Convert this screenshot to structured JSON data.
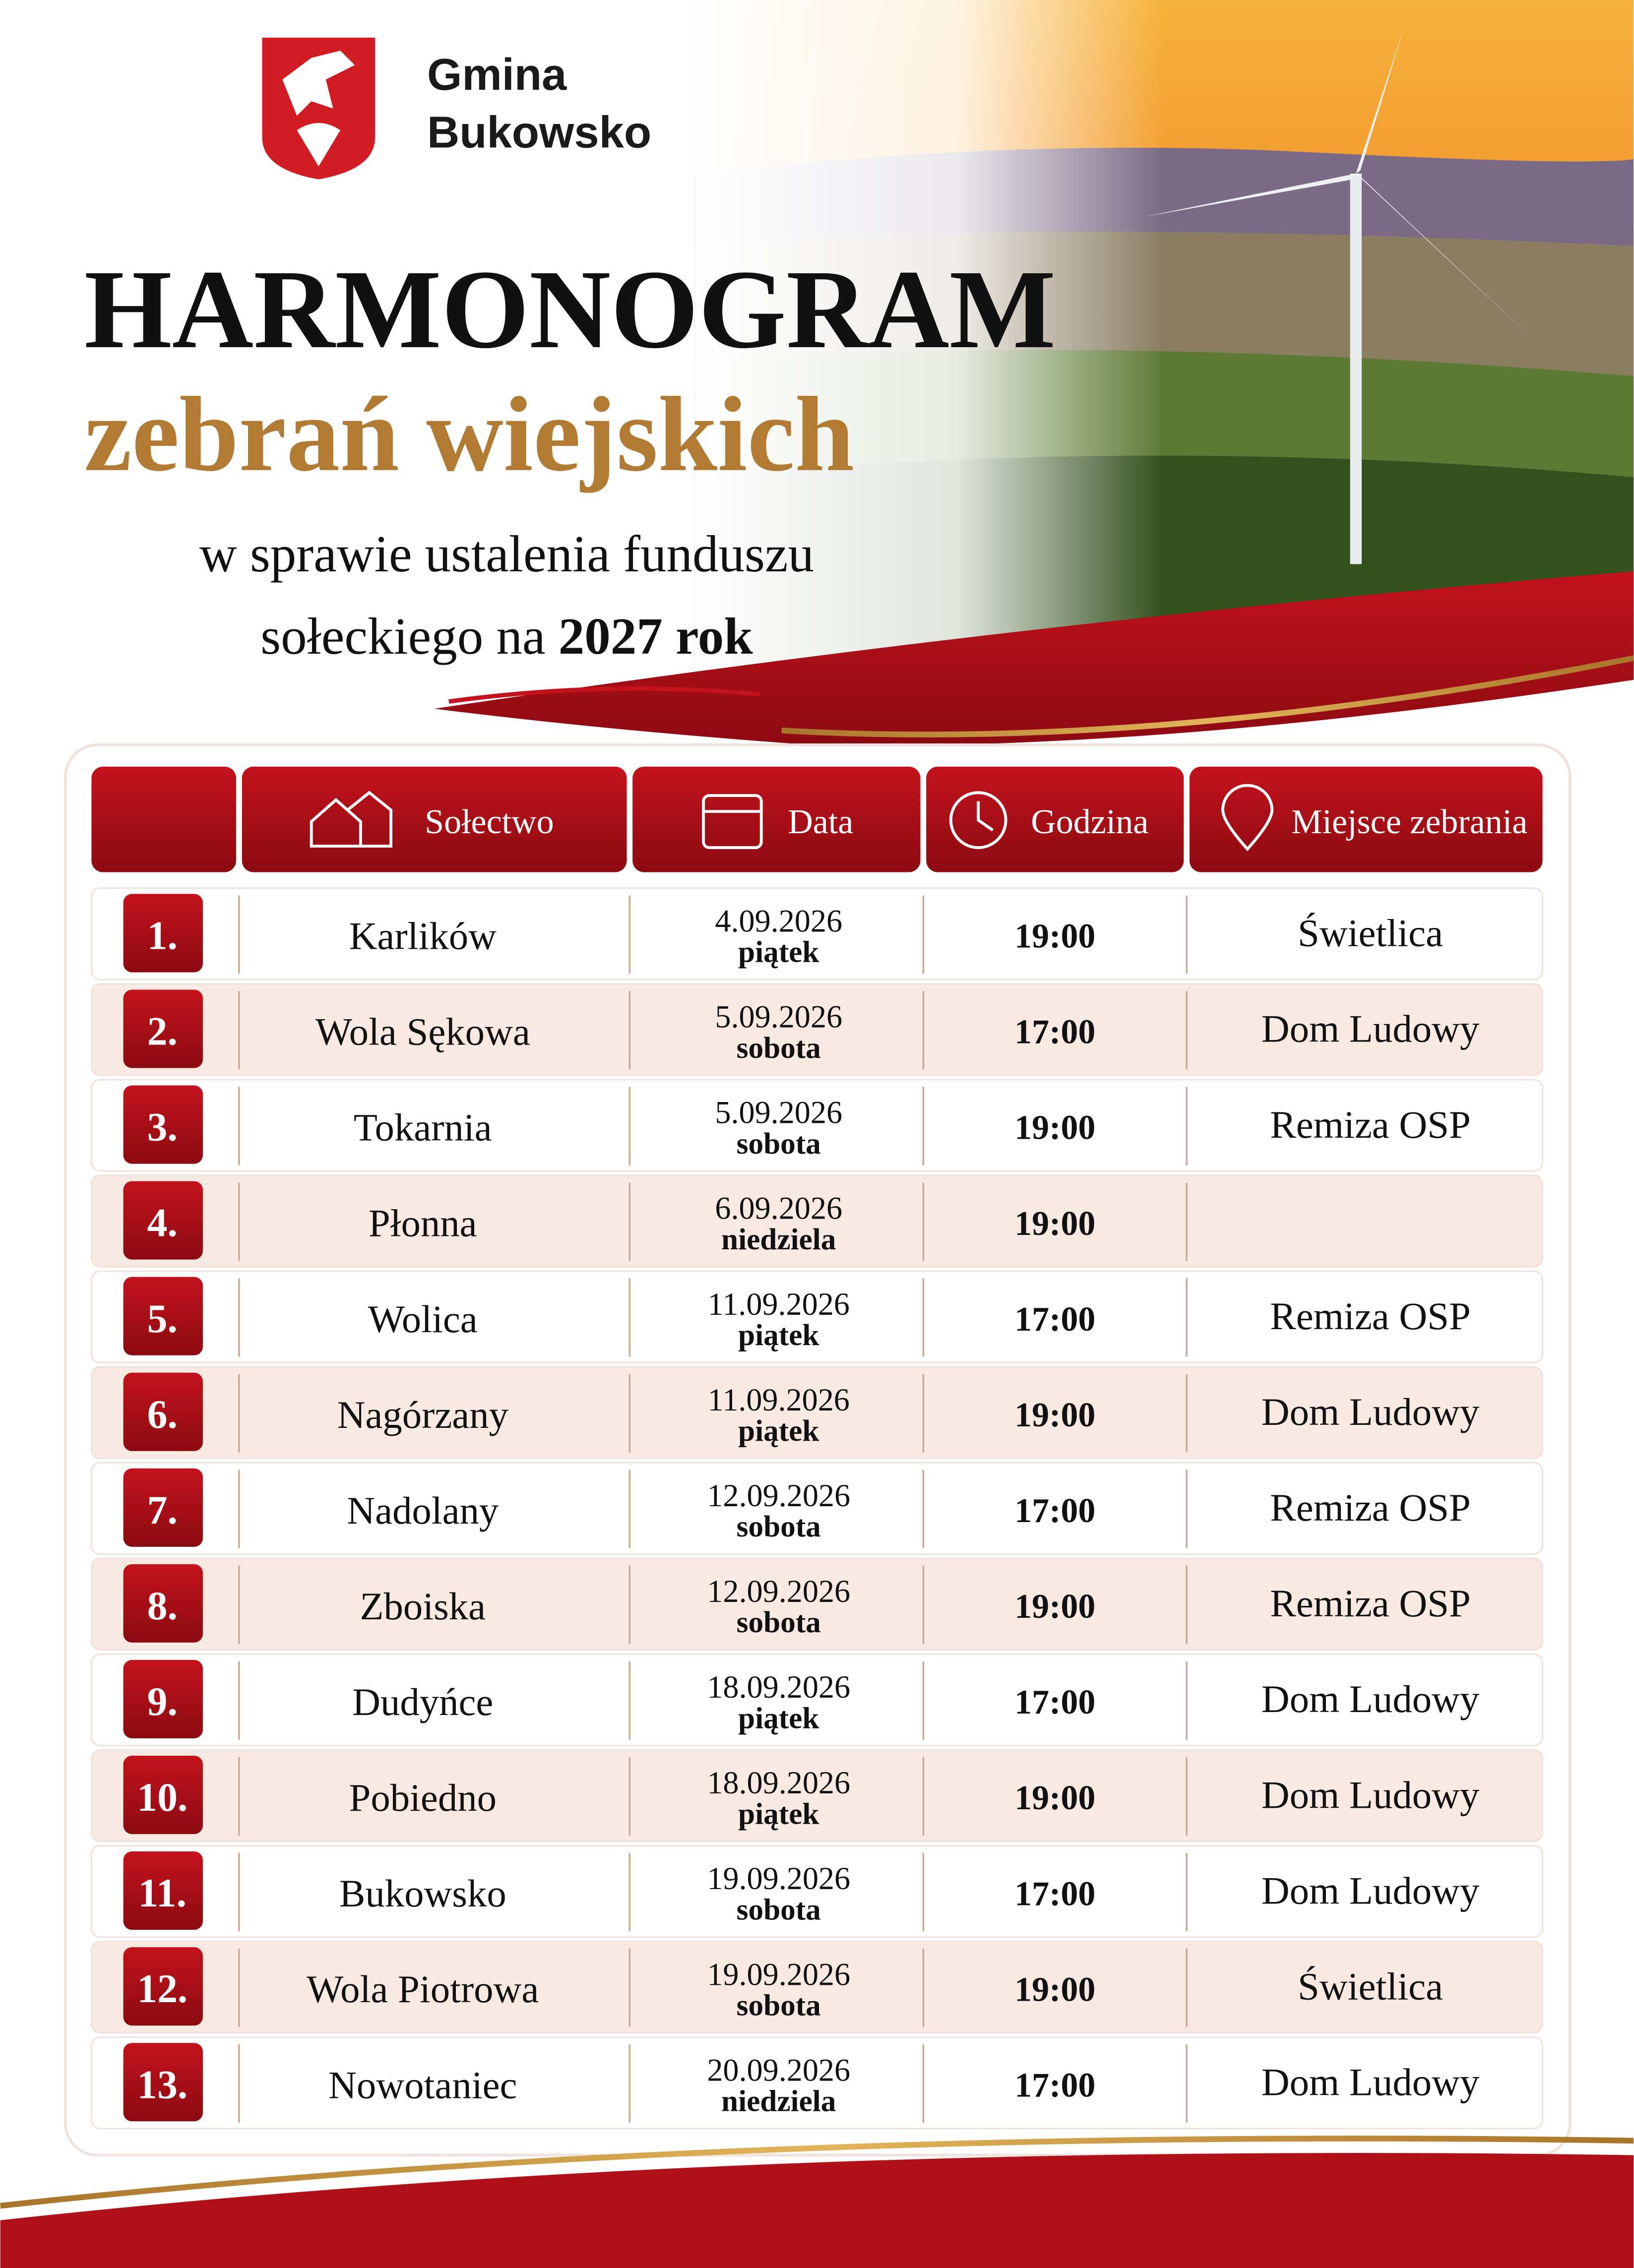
{
  "header": {
    "logo_lines": [
      "Gmina",
      "Bukowsko"
    ],
    "title": "HARMONOGRAM",
    "subtitle": "zebrań wiejskich",
    "description_line1": "w sprawie ustalenia funduszu",
    "description_line2": "sołeckiego na",
    "year": "2027",
    "year_suffix": "rok"
  },
  "table": {
    "columns": [
      "Sołectwo",
      "Data",
      "Godzina",
      "Miejsce zebrania"
    ],
    "rows": [
      {
        "no": "1.",
        "village": "Karlików",
        "date": "4.09.2026",
        "day": "piątek",
        "time": "19:00",
        "place": "Świetlica"
      },
      {
        "no": "2.",
        "village": "Wola Sękowa",
        "date": "5.09.2026",
        "day": "sobota",
        "time": "17:00",
        "place": "Dom Ludowy"
      },
      {
        "no": "3.",
        "village": "Tokarnia",
        "date": "5.09.2026",
        "day": "sobota",
        "time": "19:00",
        "place": "Remiza OSP"
      },
      {
        "no": "4.",
        "village": "Płonna",
        "date": "6.09.2026",
        "day": "niedziela",
        "time": "19:00"
      },
      {
        "no": "5.",
        "village": "Wolica",
        "date": "11.09.2026",
        "day": "piątek",
        "time": "17:00",
        "place": "Remiza OSP"
      },
      {
        "no": "6.",
        "village": "Nagórzany",
        "date": "11.09.2026",
        "day": "piątek",
        "time": "19:00",
        "place": "Dom Ludowy"
      },
      {
        "no": "7.",
        "village": "Nadolany",
        "date": "12.09.2026",
        "day": "sobota",
        "time": "17:00",
        "place": "Remiza OSP"
      },
      {
        "no": "8.",
        "village": "Zboiska",
        "date": "12.09.2026",
        "day": "sobota",
        "time": "19:00",
        "place": "Remiza OSP"
      },
      {
        "no": "9.",
        "village": "Dudyńce",
        "date": "18.09.2026",
        "day": "piątek",
        "time": "17:00",
        "place": "Dom Ludowy"
      },
      {
        "no": "10.",
        "village": "Pobiedno",
        "date": "18.09.2026",
        "day": "piątek",
        "time": "19:00",
        "place": "Dom Ludowy"
      },
      {
        "no": "11.",
        "village": "Bukowsko",
        "date": "19.09.2026",
        "day": "sobota",
        "time": "17:00",
        "place": "Dom Ludowy"
      },
      {
        "no": "12.",
        "village": "Wola Piotrowa",
        "date": "19.09.2026",
        "day": "sobota",
        "time": "19:00",
        "place": "Świetlica"
      },
      {
        "no": "13.",
        "village": "Nowotaniec",
        "date": "20.09.2026",
        "day": "niedziela",
        "time": "17:00",
        "place": "Dom Ludowy"
      }
    ]
  }
}
